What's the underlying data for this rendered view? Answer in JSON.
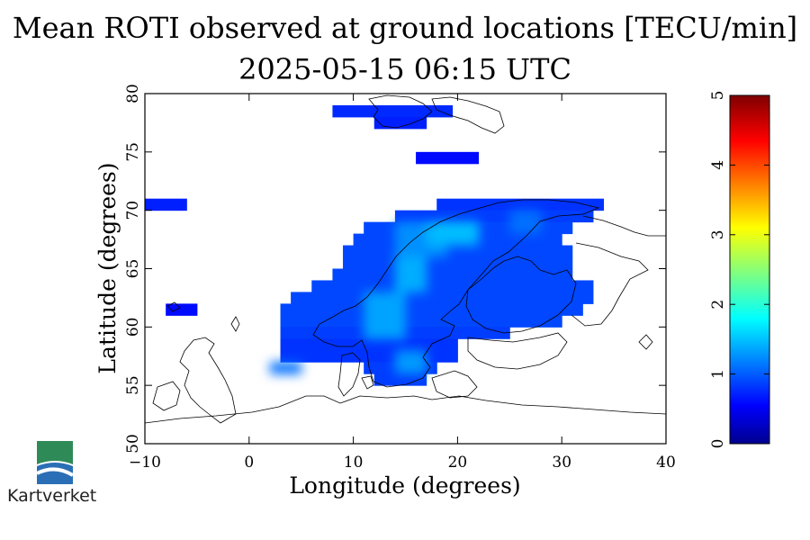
{
  "title_line1": "Mean ROTI observed at ground locations [TECU/min]",
  "title_line2": "2025-05-15 06:15 UTC",
  "logo_text": "Kartverket",
  "colors": {
    "land_outline": "#000000",
    "logo_green": "#2e8b57",
    "logo_blue": "#2a6fb5"
  },
  "chart_data": {
    "type": "heatmap",
    "title": "Mean ROTI observed at ground locations [TECU/min]",
    "subtitle": "2025-05-15 06:15 UTC",
    "xlabel": "Longitude (degrees)",
    "ylabel": "Latitude (degrees)",
    "xlim": [
      -10,
      40
    ],
    "ylim": [
      50,
      80
    ],
    "xticks": [
      -10,
      0,
      10,
      20,
      30,
      40
    ],
    "yticks": [
      50,
      55,
      60,
      65,
      70,
      75,
      80
    ],
    "xtick_labels": [
      "−10",
      "0",
      "10",
      "20",
      "30",
      "40"
    ],
    "ytick_labels": [
      "50",
      "55",
      "60",
      "65",
      "70",
      "75",
      "80"
    ],
    "colorbar": {
      "min": 0,
      "max": 5,
      "ticks": [
        "0",
        "1",
        "2",
        "3",
        "4",
        "5"
      ],
      "colormap": "jet"
    },
    "cells": [
      {
        "lon": [
          8,
          19.5
        ],
        "lat": [
          78,
          79
        ],
        "value": 0.75
      },
      {
        "lon": [
          12,
          17
        ],
        "lat": [
          77,
          78
        ],
        "value": 0.7
      },
      {
        "lon": [
          16,
          22
        ],
        "lat": [
          74,
          75
        ],
        "value": 0.6
      },
      {
        "lon": [
          -10,
          -6
        ],
        "lat": [
          70,
          71
        ],
        "value": 0.7
      },
      {
        "lon": [
          -8,
          -5
        ],
        "lat": [
          61,
          62
        ],
        "value": 0.6
      },
      {
        "lon": [
          18,
          34
        ],
        "lat": [
          70,
          71
        ],
        "value": 0.8
      },
      {
        "lon": [
          14,
          33
        ],
        "lat": [
          69,
          70
        ],
        "value": 0.85
      },
      {
        "lon": [
          11,
          31
        ],
        "lat": [
          68,
          69
        ],
        "value": 0.9
      },
      {
        "lon": [
          10,
          30
        ],
        "lat": [
          67,
          68
        ],
        "value": 0.9
      },
      {
        "lon": [
          9,
          31
        ],
        "lat": [
          66,
          67
        ],
        "value": 0.9
      },
      {
        "lon": [
          9,
          31
        ],
        "lat": [
          65,
          66
        ],
        "value": 0.9
      },
      {
        "lon": [
          8,
          31
        ],
        "lat": [
          64,
          65
        ],
        "value": 0.9
      },
      {
        "lon": [
          6,
          33
        ],
        "lat": [
          63,
          64
        ],
        "value": 0.9
      },
      {
        "lon": [
          4,
          33
        ],
        "lat": [
          62,
          63
        ],
        "value": 0.9
      },
      {
        "lon": [
          3,
          32
        ],
        "lat": [
          61,
          62
        ],
        "value": 0.9
      },
      {
        "lon": [
          3,
          30
        ],
        "lat": [
          60,
          61
        ],
        "value": 0.9
      },
      {
        "lon": [
          3,
          25
        ],
        "lat": [
          59,
          60
        ],
        "value": 0.85
      },
      {
        "lon": [
          3,
          20
        ],
        "lat": [
          58,
          59
        ],
        "value": 0.8
      },
      {
        "lon": [
          3,
          20
        ],
        "lat": [
          57,
          58
        ],
        "value": 0.8
      },
      {
        "lon": [
          2,
          5
        ],
        "lat": [
          56,
          57
        ],
        "value": 1.1
      },
      {
        "lon": [
          11,
          18
        ],
        "lat": [
          56,
          57
        ],
        "value": 0.85
      },
      {
        "lon": [
          12,
          17
        ],
        "lat": [
          55,
          56
        ],
        "value": 0.85
      },
      {
        "lon": [
          14,
          19
        ],
        "lat": [
          66,
          69
        ],
        "value": 1.25
      },
      {
        "lon": [
          17,
          22
        ],
        "lat": [
          67,
          69
        ],
        "value": 1.45
      },
      {
        "lon": [
          14,
          17
        ],
        "lat": [
          63,
          66
        ],
        "value": 1.4
      },
      {
        "lon": [
          11,
          15
        ],
        "lat": [
          59,
          63
        ],
        "value": 1.35
      },
      {
        "lon": [
          14,
          17
        ],
        "lat": [
          56,
          58
        ],
        "value": 1.3
      },
      {
        "lon": [
          25,
          28
        ],
        "lat": [
          68,
          70
        ],
        "value": 1.1
      },
      {
        "lon": [
          18,
          22
        ],
        "lat": [
          68,
          69
        ],
        "value": 1.5
      }
    ]
  }
}
